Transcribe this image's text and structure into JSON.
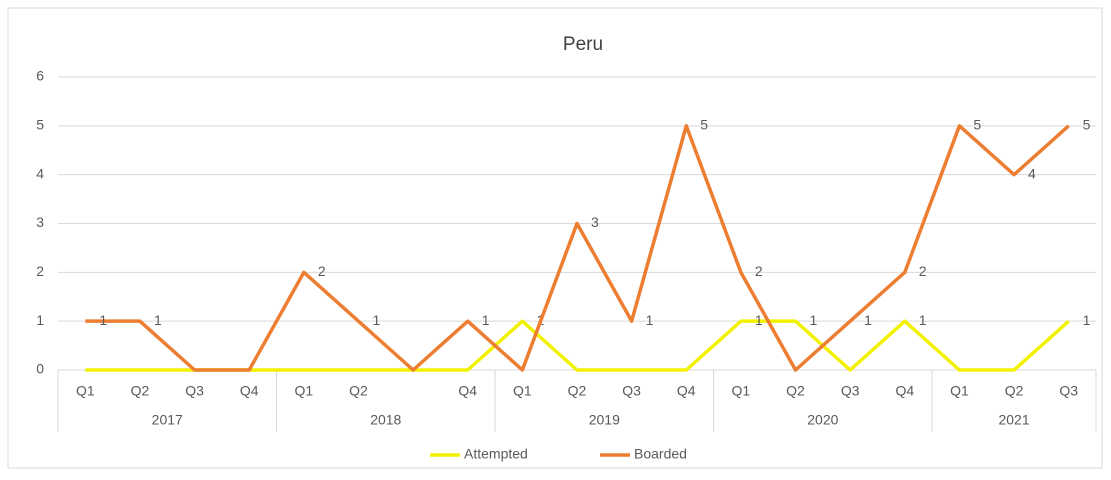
{
  "chart_data": {
    "type": "line",
    "title": "Peru",
    "categories": [
      "Q1",
      "Q2",
      "Q3",
      "Q4",
      "Q1",
      "Q2",
      null,
      "Q4",
      "Q1",
      "Q2",
      "Q3",
      "Q4",
      "Q1",
      "Q2",
      "Q3",
      "Q4",
      "Q1",
      "Q2",
      "Q3"
    ],
    "category_groups": [
      {
        "label": "2017",
        "span": 4
      },
      {
        "label": "2018",
        "span": 4
      },
      {
        "label": "2019",
        "span": 4
      },
      {
        "label": "2020",
        "span": 4
      },
      {
        "label": "2021",
        "span": 3
      }
    ],
    "series": [
      {
        "name": "Attempted",
        "color": "#f2f200",
        "values": [
          0,
          0,
          0,
          0,
          0,
          0,
          0,
          0,
          1,
          0,
          0,
          0,
          1,
          1,
          0,
          1,
          0,
          0,
          1
        ]
      },
      {
        "name": "Boarded",
        "color": "#ed7d31",
        "values": [
          1,
          1,
          0,
          0,
          2,
          1,
          0,
          1,
          0,
          3,
          1,
          5,
          2,
          0,
          1,
          2,
          5,
          4,
          5
        ]
      }
    ],
    "ylim": [
      0,
      6
    ],
    "yticks": [
      0,
      1,
      2,
      3,
      4,
      5,
      6
    ],
    "grid": true,
    "legend": "bottom"
  }
}
